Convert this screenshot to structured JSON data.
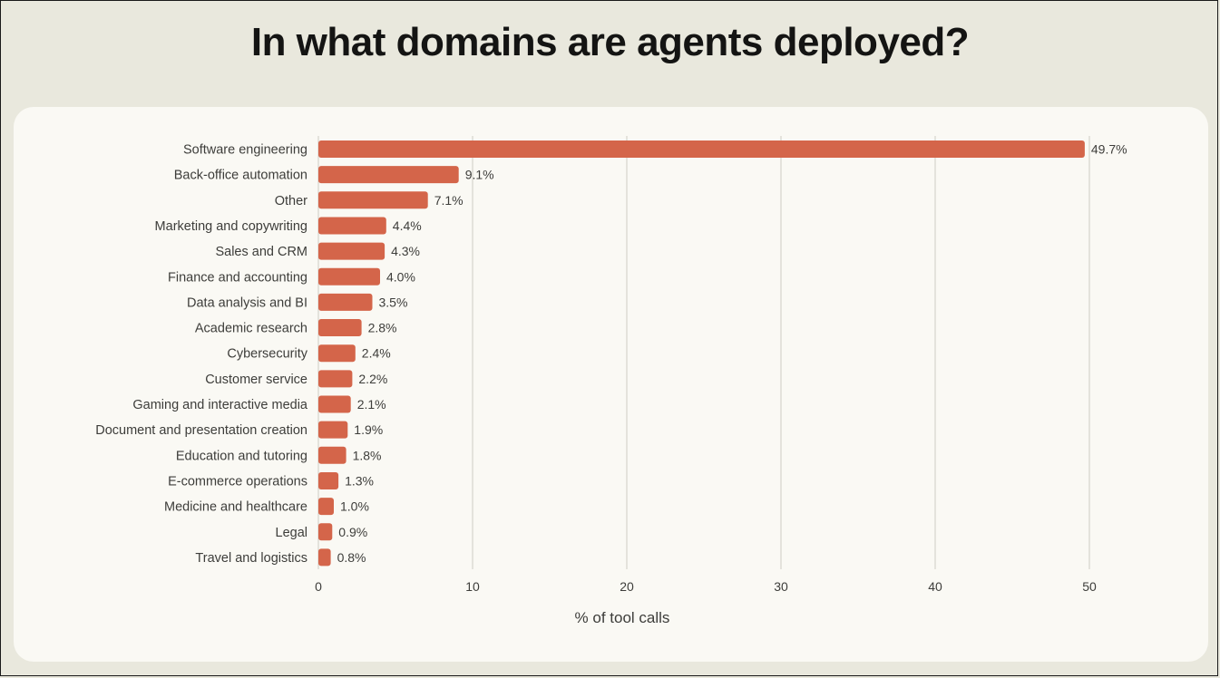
{
  "title": "In what domains are agents deployed?",
  "chart_data": {
    "type": "bar",
    "orientation": "horizontal",
    "categories": [
      "Software engineering",
      "Back-office automation",
      "Other",
      "Marketing and copywriting",
      "Sales and CRM",
      "Finance and accounting",
      "Data analysis and BI",
      "Academic research",
      "Cybersecurity",
      "Customer service",
      "Gaming and interactive media",
      "Document and presentation creation",
      "Education and tutoring",
      "E-commerce operations",
      "Medicine and healthcare",
      "Legal",
      "Travel and logistics"
    ],
    "values": [
      49.7,
      9.1,
      7.1,
      4.4,
      4.3,
      4.0,
      3.5,
      2.8,
      2.4,
      2.2,
      2.1,
      1.9,
      1.8,
      1.3,
      1.0,
      0.9,
      0.8
    ],
    "value_labels": [
      "49.7%",
      "9.1%",
      "7.1%",
      "4.4%",
      "4.3%",
      "4.0%",
      "3.5%",
      "2.8%",
      "2.4%",
      "2.2%",
      "2.1%",
      "1.9%",
      "1.8%",
      "1.3%",
      "1.0%",
      "0.9%",
      "0.8%"
    ],
    "xlabel": "% of tool calls",
    "ylabel": "",
    "xlim": [
      0,
      50
    ],
    "xticks": [
      0,
      10,
      20,
      30,
      40,
      50
    ],
    "grid": "vertical",
    "legend": "none",
    "bar_color": "#d4654a",
    "grid_color": "#d5d4cc",
    "text_color": "#3d3d3a"
  }
}
